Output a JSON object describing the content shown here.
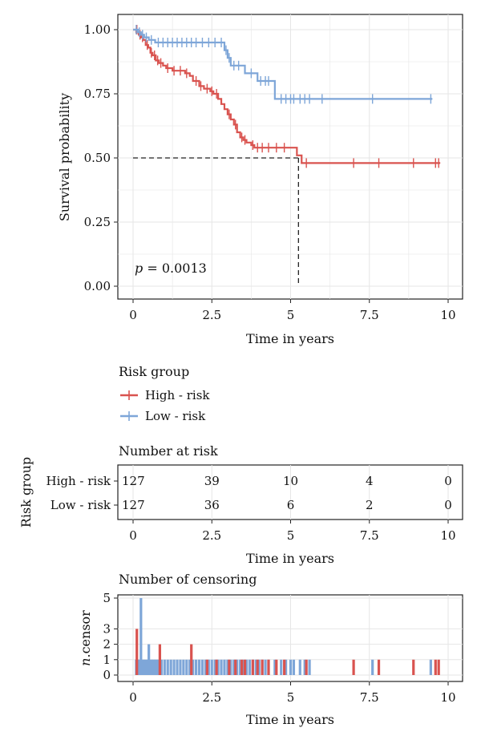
{
  "colors": {
    "high": "#d9534f",
    "low": "#7ea6d8",
    "grid": "#e6e6e6",
    "frame": "#222222"
  },
  "chart_data": [
    {
      "type": "line",
      "subtype": "kaplan-meier",
      "ylabel": "Survival probability",
      "xlabel": "Time in years",
      "xlim": [
        0,
        10
      ],
      "ylim": [
        0,
        1
      ],
      "x_ticks": [
        "0",
        "2.5",
        "5",
        "7.5",
        "10"
      ],
      "y_ticks": [
        "0.00",
        "0.25",
        "0.50",
        "0.75",
        "1.00"
      ],
      "pvalue_label": "p",
      "pvalue_text": " = 0.0013",
      "median_survival": {
        "x": 5.25,
        "y": 0.5
      },
      "series": [
        {
          "name": "High - risk",
          "color": "#d9534f",
          "steps": [
            [
              0,
              1.0
            ],
            [
              0.1,
              0.99
            ],
            [
              0.18,
              0.98
            ],
            [
              0.25,
              0.97
            ],
            [
              0.32,
              0.96
            ],
            [
              0.4,
              0.94
            ],
            [
              0.48,
              0.93
            ],
            [
              0.55,
              0.91
            ],
            [
              0.62,
              0.9
            ],
            [
              0.72,
              0.88
            ],
            [
              0.82,
              0.87
            ],
            [
              0.95,
              0.86
            ],
            [
              1.05,
              0.85
            ],
            [
              1.25,
              0.84
            ],
            [
              1.45,
              0.84
            ],
            [
              1.65,
              0.83
            ],
            [
              1.8,
              0.82
            ],
            [
              1.9,
              0.8
            ],
            [
              2.1,
              0.78
            ],
            [
              2.25,
              0.77
            ],
            [
              2.45,
              0.76
            ],
            [
              2.55,
              0.75
            ],
            [
              2.7,
              0.73
            ],
            [
              2.8,
              0.71
            ],
            [
              2.9,
              0.69
            ],
            [
              3.0,
              0.67
            ],
            [
              3.1,
              0.65
            ],
            [
              3.2,
              0.63
            ],
            [
              3.3,
              0.6
            ],
            [
              3.4,
              0.58
            ],
            [
              3.5,
              0.57
            ],
            [
              3.6,
              0.56
            ],
            [
              3.75,
              0.55
            ],
            [
              3.85,
              0.54
            ],
            [
              5.2,
              0.54
            ],
            [
              5.2,
              0.51
            ],
            [
              5.35,
              0.48
            ],
            [
              9.75,
              0.48
            ]
          ],
          "censors": [
            [
              0.12,
              1.0
            ],
            [
              0.22,
              0.98
            ],
            [
              0.3,
              0.97
            ],
            [
              0.45,
              0.94
            ],
            [
              0.58,
              0.91
            ],
            [
              0.68,
              0.9
            ],
            [
              0.78,
              0.88
            ],
            [
              0.88,
              0.87
            ],
            [
              1.1,
              0.85
            ],
            [
              1.3,
              0.84
            ],
            [
              1.5,
              0.84
            ],
            [
              1.7,
              0.83
            ],
            [
              2.0,
              0.8
            ],
            [
              2.15,
              0.78
            ],
            [
              2.35,
              0.77
            ],
            [
              2.5,
              0.76
            ],
            [
              2.65,
              0.75
            ],
            [
              3.05,
              0.67
            ],
            [
              3.25,
              0.63
            ],
            [
              3.45,
              0.58
            ],
            [
              3.55,
              0.57
            ],
            [
              3.8,
              0.55
            ],
            [
              3.95,
              0.54
            ],
            [
              4.1,
              0.54
            ],
            [
              4.3,
              0.54
            ],
            [
              4.55,
              0.54
            ],
            [
              4.8,
              0.54
            ],
            [
              5.5,
              0.48
            ],
            [
              7.0,
              0.48
            ],
            [
              7.8,
              0.48
            ],
            [
              8.9,
              0.48
            ],
            [
              9.6,
              0.48
            ],
            [
              9.7,
              0.48
            ]
          ]
        },
        {
          "name": "Low - risk",
          "color": "#7ea6d8",
          "steps": [
            [
              0,
              1.0
            ],
            [
              0.15,
              0.99
            ],
            [
              0.25,
              0.98
            ],
            [
              0.35,
              0.97
            ],
            [
              0.5,
              0.96
            ],
            [
              0.7,
              0.95
            ],
            [
              2.85,
              0.95
            ],
            [
              2.9,
              0.92
            ],
            [
              3.0,
              0.89
            ],
            [
              3.1,
              0.86
            ],
            [
              3.5,
              0.86
            ],
            [
              3.55,
              0.83
            ],
            [
              3.9,
              0.83
            ],
            [
              3.95,
              0.8
            ],
            [
              4.4,
              0.8
            ],
            [
              4.5,
              0.73
            ],
            [
              9.5,
              0.73
            ]
          ],
          "censors": [
            [
              0.1,
              1.0
            ],
            [
              0.2,
              0.99
            ],
            [
              0.3,
              0.98
            ],
            [
              0.42,
              0.97
            ],
            [
              0.58,
              0.96
            ],
            [
              0.8,
              0.95
            ],
            [
              0.95,
              0.95
            ],
            [
              1.1,
              0.95
            ],
            [
              1.25,
              0.95
            ],
            [
              1.4,
              0.95
            ],
            [
              1.55,
              0.95
            ],
            [
              1.7,
              0.95
            ],
            [
              1.85,
              0.95
            ],
            [
              2.0,
              0.95
            ],
            [
              2.2,
              0.95
            ],
            [
              2.4,
              0.95
            ],
            [
              2.6,
              0.95
            ],
            [
              2.8,
              0.95
            ],
            [
              2.95,
              0.92
            ],
            [
              3.05,
              0.89
            ],
            [
              3.2,
              0.86
            ],
            [
              3.35,
              0.86
            ],
            [
              3.75,
              0.83
            ],
            [
              4.05,
              0.8
            ],
            [
              4.2,
              0.8
            ],
            [
              4.3,
              0.8
            ],
            [
              4.7,
              0.73
            ],
            [
              4.85,
              0.73
            ],
            [
              5.0,
              0.73
            ],
            [
              5.1,
              0.73
            ],
            [
              5.3,
              0.73
            ],
            [
              5.45,
              0.73
            ],
            [
              5.6,
              0.73
            ],
            [
              6.0,
              0.73
            ],
            [
              7.6,
              0.73
            ],
            [
              9.45,
              0.73
            ]
          ]
        }
      ]
    },
    {
      "type": "table",
      "title": "Number at risk",
      "ylabel": "Risk group",
      "xlabel": "Time in years",
      "x_ticks": [
        "0",
        "2.5",
        "5",
        "7.5",
        "10"
      ],
      "times": [
        0,
        2.5,
        5,
        7.5,
        10
      ],
      "rows": [
        {
          "name": "High - risk",
          "values": [
            "127",
            "39",
            "10",
            "4",
            "0"
          ]
        },
        {
          "name": "Low - risk",
          "values": [
            "127",
            "36",
            "6",
            "2",
            "0"
          ]
        }
      ]
    },
    {
      "type": "bar",
      "title": "Number of censoring",
      "ylabel_italic": "n",
      "ylabel_rest": ".censor",
      "xlabel": "Time in years",
      "x_ticks": [
        "0",
        "2.5",
        "5",
        "7.5",
        "10"
      ],
      "y_ticks": [
        "0",
        "1",
        "2",
        "3",
        "5"
      ],
      "ylim": [
        0,
        5
      ],
      "series": [
        {
          "name": "Low - risk",
          "color": "#7ea6d8",
          "x": [
            0.1,
            0.15,
            0.2,
            0.25,
            0.3,
            0.35,
            0.4,
            0.45,
            0.5,
            0.55,
            0.6,
            0.65,
            0.7,
            0.75,
            0.8,
            0.9,
            1.0,
            1.1,
            1.2,
            1.3,
            1.4,
            1.5,
            1.6,
            1.7,
            1.8,
            1.9,
            2.0,
            2.1,
            2.2,
            2.3,
            2.4,
            2.5,
            2.6,
            2.7,
            2.8,
            2.9,
            3.0,
            3.1,
            3.2,
            3.3,
            3.4,
            3.5,
            3.6,
            3.7,
            3.8,
            3.9,
            4.0,
            4.1,
            4.2,
            4.3,
            4.5,
            4.7,
            4.85,
            5.0,
            5.1,
            5.3,
            5.45,
            5.6,
            7.6,
            9.45
          ],
          "values": [
            1,
            1,
            1,
            5,
            1,
            1,
            1,
            1,
            2,
            1,
            1,
            1,
            1,
            1,
            1,
            1,
            1,
            1,
            1,
            1,
            1,
            1,
            1,
            1,
            1,
            1,
            1,
            1,
            1,
            1,
            1,
            1,
            1,
            1,
            1,
            1,
            1,
            1,
            1,
            1,
            1,
            1,
            1,
            1,
            1,
            1,
            1,
            1,
            1,
            1,
            1,
            1,
            1,
            1,
            1,
            1,
            1,
            1,
            1,
            1
          ]
        },
        {
          "name": "High - risk",
          "color": "#d9534f",
          "x": [
            0.12,
            0.85,
            1.85,
            2.35,
            2.65,
            3.05,
            3.25,
            3.45,
            3.55,
            3.8,
            3.95,
            4.1,
            4.3,
            4.55,
            4.8,
            5.5,
            7.0,
            7.8,
            8.9,
            9.6,
            9.7
          ],
          "values": [
            3,
            2,
            2,
            1,
            1,
            1,
            1,
            1,
            1,
            1,
            1,
            1,
            1,
            1,
            1,
            1,
            1,
            1,
            1,
            1,
            1
          ]
        }
      ]
    }
  ],
  "legend": {
    "title": "Risk group",
    "items": [
      {
        "label": "High - risk",
        "color": "#d9534f"
      },
      {
        "label": "Low - risk",
        "color": "#7ea6d8"
      }
    ]
  }
}
